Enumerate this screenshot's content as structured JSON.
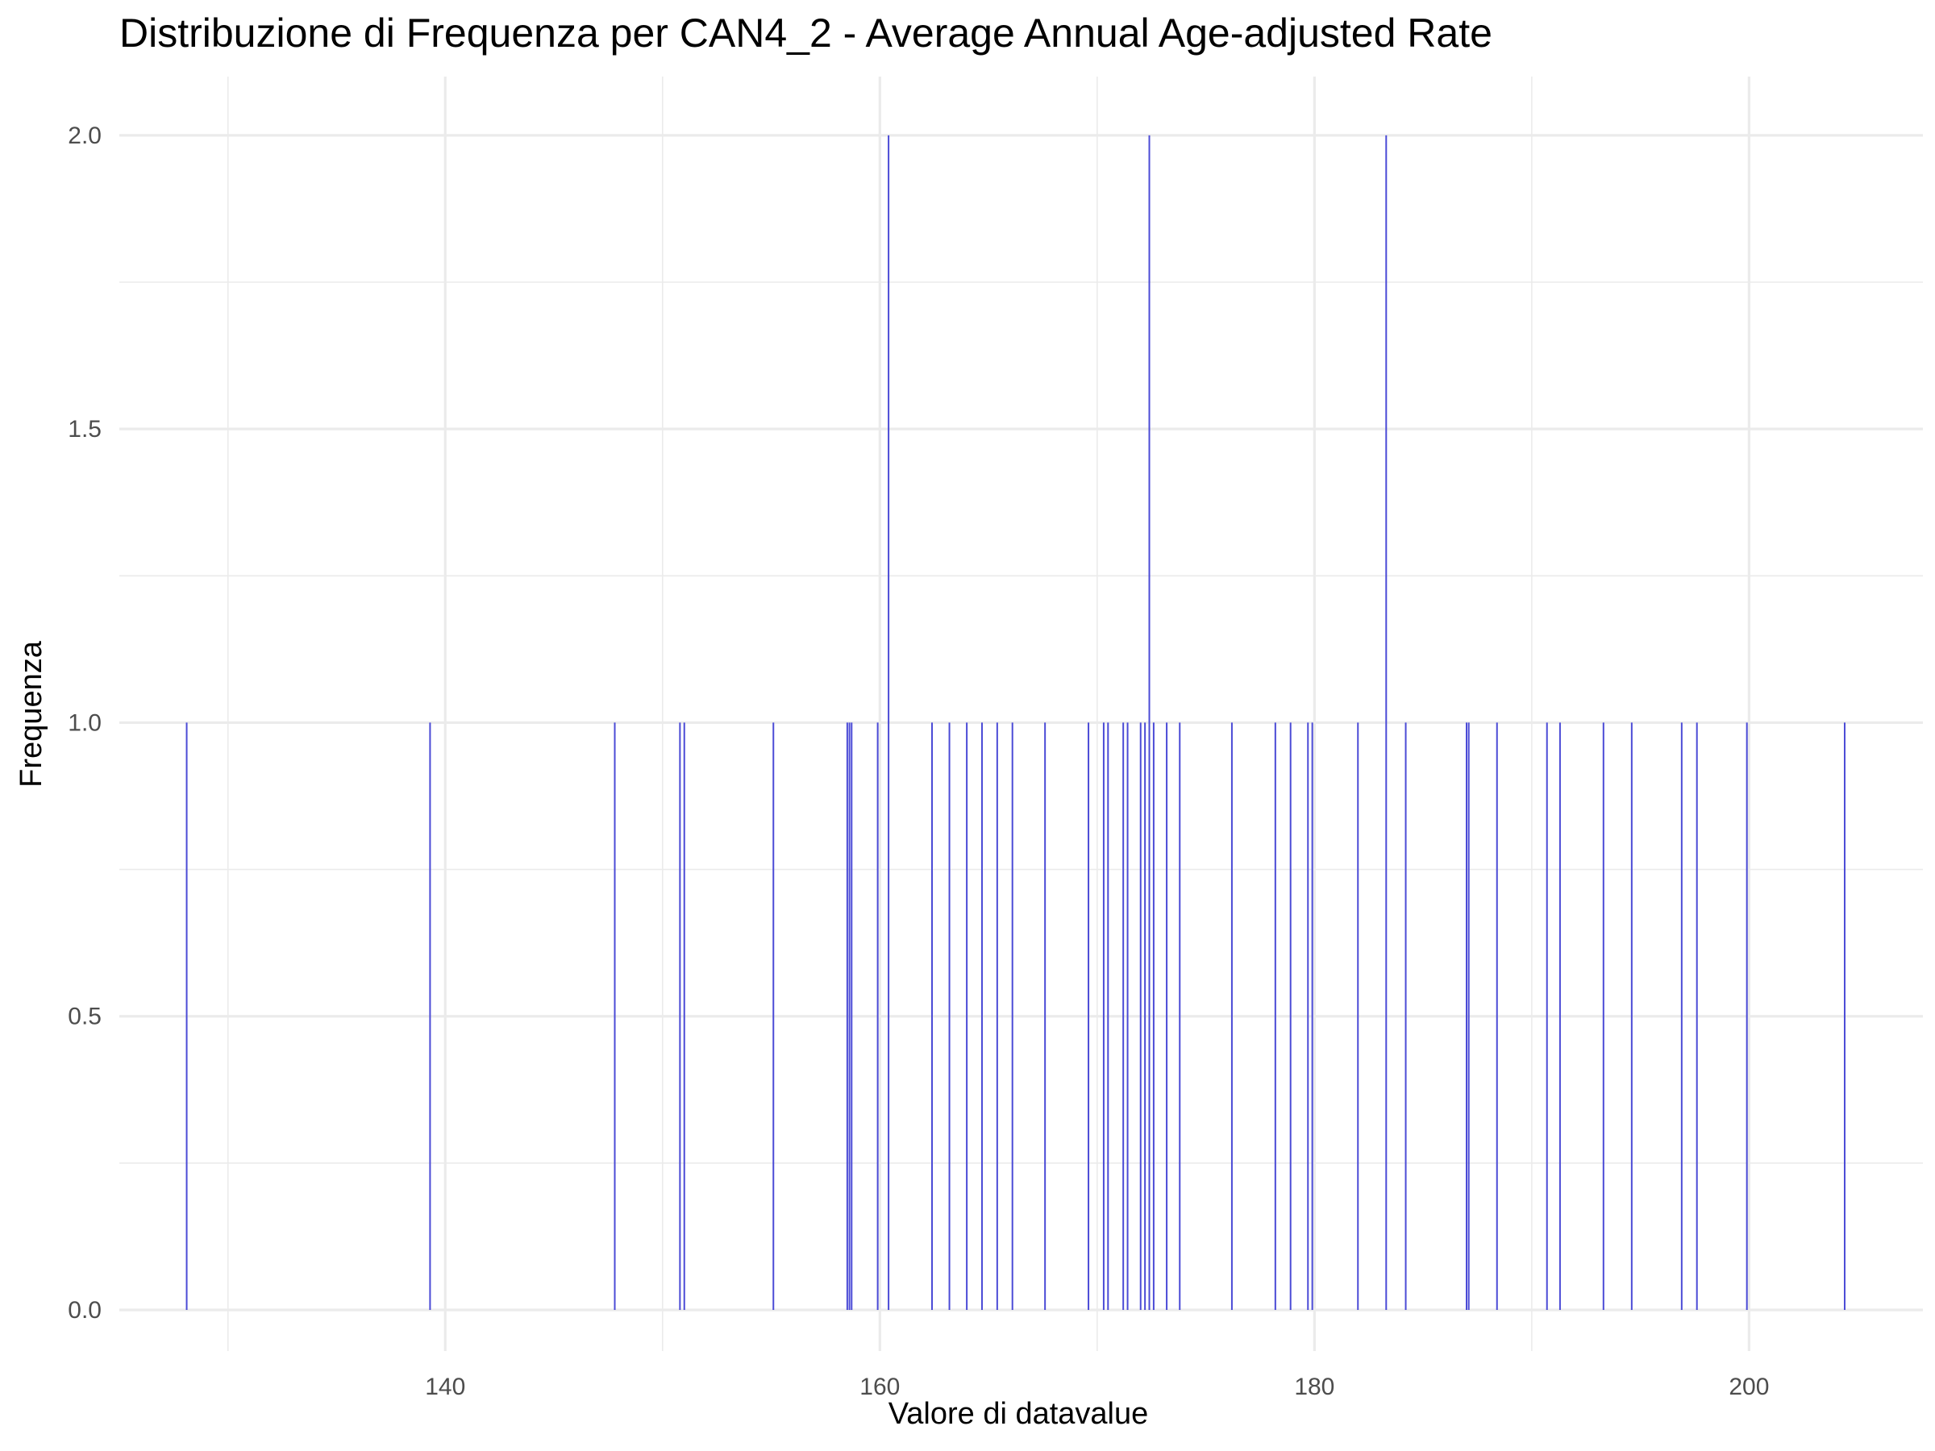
{
  "chart_data": {
    "type": "bar",
    "title": "Distribuzione di Frequenza per CAN4_2 - Average Annual Age-adjusted Rate",
    "xlabel": "Valore di datavalue",
    "ylabel": "Frequenza",
    "xlim": [
      125,
      208
    ],
    "ylim": [
      -0.07,
      2.1
    ],
    "x_ticks": [
      140,
      160,
      180,
      200
    ],
    "x_tick_labels": [
      "140",
      "160",
      "180",
      "200"
    ],
    "x_minor_ticks": [
      130,
      150,
      170,
      190
    ],
    "y_ticks": [
      0,
      0.5,
      1,
      1.5,
      2
    ],
    "y_tick_labels": [
      "0.0",
      "0.5",
      "1.0",
      "1.5",
      "2.0"
    ],
    "y_minor_ticks": [
      0.25,
      0.75,
      1.25,
      1.75
    ],
    "grid": true,
    "bar_color": "#4b4bd6",
    "bars": [
      {
        "x": 128.1,
        "count": 1
      },
      {
        "x": 139.3,
        "count": 1
      },
      {
        "x": 147.8,
        "count": 1
      },
      {
        "x": 150.8,
        "count": 1
      },
      {
        "x": 151.0,
        "count": 1
      },
      {
        "x": 155.1,
        "count": 1
      },
      {
        "x": 158.5,
        "count": 1
      },
      {
        "x": 158.6,
        "count": 1
      },
      {
        "x": 158.7,
        "count": 1
      },
      {
        "x": 159.9,
        "count": 1
      },
      {
        "x": 160.4,
        "count": 2
      },
      {
        "x": 162.4,
        "count": 1
      },
      {
        "x": 163.2,
        "count": 1
      },
      {
        "x": 164.0,
        "count": 1
      },
      {
        "x": 164.7,
        "count": 1
      },
      {
        "x": 165.4,
        "count": 1
      },
      {
        "x": 166.1,
        "count": 1
      },
      {
        "x": 167.6,
        "count": 1
      },
      {
        "x": 169.6,
        "count": 1
      },
      {
        "x": 170.3,
        "count": 1
      },
      {
        "x": 170.5,
        "count": 1
      },
      {
        "x": 171.2,
        "count": 1
      },
      {
        "x": 171.4,
        "count": 1
      },
      {
        "x": 172.0,
        "count": 1
      },
      {
        "x": 172.2,
        "count": 1
      },
      {
        "x": 172.4,
        "count": 2
      },
      {
        "x": 172.6,
        "count": 1
      },
      {
        "x": 173.2,
        "count": 1
      },
      {
        "x": 173.8,
        "count": 1
      },
      {
        "x": 176.2,
        "count": 1
      },
      {
        "x": 178.2,
        "count": 1
      },
      {
        "x": 178.9,
        "count": 1
      },
      {
        "x": 179.7,
        "count": 1
      },
      {
        "x": 179.9,
        "count": 1
      },
      {
        "x": 182.0,
        "count": 1
      },
      {
        "x": 183.3,
        "count": 2
      },
      {
        "x": 184.2,
        "count": 1
      },
      {
        "x": 187.0,
        "count": 1
      },
      {
        "x": 187.1,
        "count": 1
      },
      {
        "x": 188.4,
        "count": 1
      },
      {
        "x": 190.7,
        "count": 1
      },
      {
        "x": 191.3,
        "count": 1
      },
      {
        "x": 193.3,
        "count": 1
      },
      {
        "x": 194.6,
        "count": 1
      },
      {
        "x": 196.9,
        "count": 1
      },
      {
        "x": 197.6,
        "count": 1
      },
      {
        "x": 199.9,
        "count": 1
      },
      {
        "x": 204.4,
        "count": 1
      }
    ]
  }
}
